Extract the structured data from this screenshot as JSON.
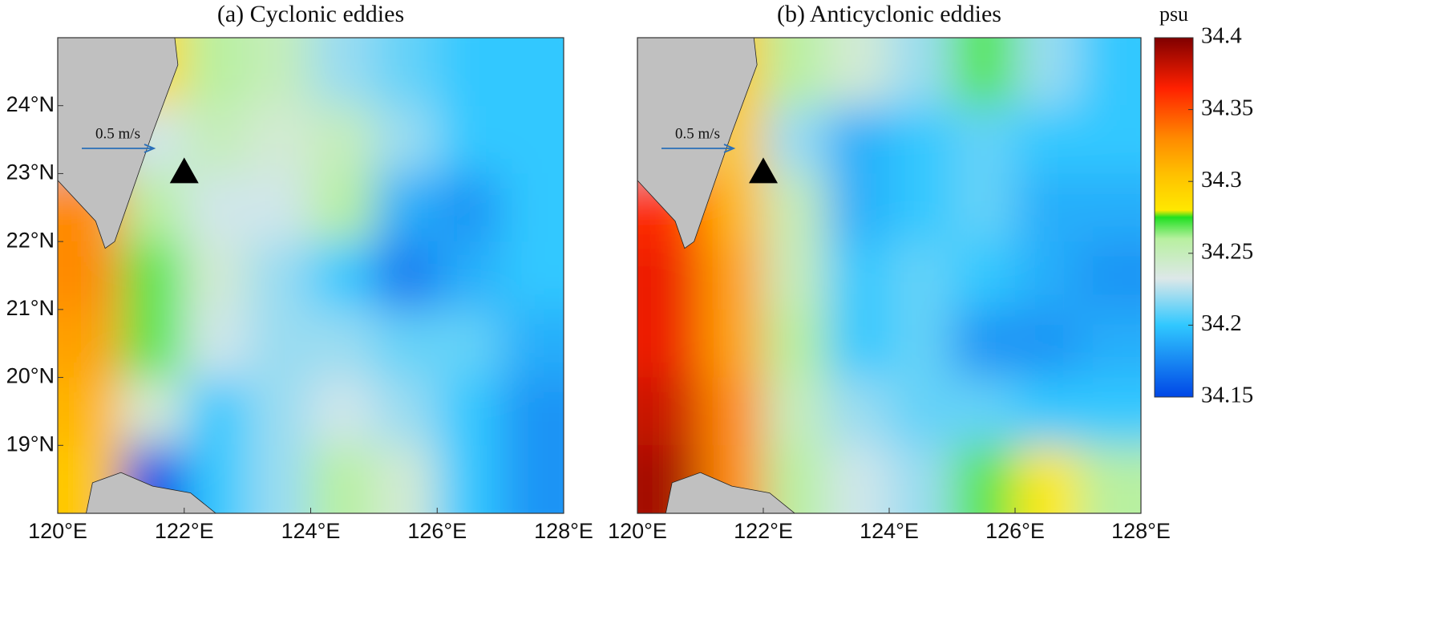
{
  "chart_data": [
    {
      "type": "heatmap",
      "title": "(a) Cyclonic eddies",
      "x": [
        120.5,
        121.5,
        122.5,
        123.5,
        124.5,
        125.5,
        126.5,
        127.5
      ],
      "y": [
        24.5,
        23.5,
        22.5,
        21.5,
        20.5,
        19.5,
        18.5
      ],
      "values": [
        [
          null,
          34.29,
          34.26,
          34.25,
          34.22,
          34.21,
          34.2,
          34.2
        ],
        [
          null,
          34.23,
          34.25,
          34.24,
          34.25,
          34.22,
          34.2,
          34.2
        ],
        [
          34.33,
          34.26,
          34.23,
          34.23,
          34.26,
          34.19,
          34.18,
          34.2
        ],
        [
          34.33,
          34.27,
          34.24,
          34.22,
          34.2,
          34.17,
          34.19,
          34.2
        ],
        [
          34.32,
          34.27,
          34.23,
          34.22,
          34.22,
          34.21,
          34.21,
          34.19
        ],
        [
          34.31,
          34.24,
          34.2,
          34.22,
          34.23,
          34.22,
          34.2,
          34.18
        ],
        [
          34.3,
          34.15,
          34.2,
          34.22,
          34.26,
          34.24,
          34.2,
          34.18
        ]
      ],
      "xlim": [
        120,
        128
      ],
      "ylim": [
        18,
        25
      ],
      "xticks": [
        {
          "value": 120,
          "label": "120°E"
        },
        {
          "value": 122,
          "label": "122°E"
        },
        {
          "value": 124,
          "label": "124°E"
        },
        {
          "value": 126,
          "label": "126°E"
        },
        {
          "value": 128,
          "label": "128°E"
        }
      ],
      "yticks": [
        {
          "value": 19,
          "label": "19°N"
        },
        {
          "value": 20,
          "label": "20°N"
        },
        {
          "value": 21,
          "label": "21°N"
        },
        {
          "value": 22,
          "label": "22°N"
        },
        {
          "value": 23,
          "label": "23°N"
        },
        {
          "value": 24,
          "label": "24°N"
        }
      ],
      "marker": {
        "lon": 122,
        "lat": 23
      },
      "scale_arrow": {
        "value": 0.5,
        "label": "0.5 m/s"
      }
    },
    {
      "type": "heatmap",
      "title": "(b) Anticyclonic eddies",
      "x": [
        120.5,
        121.5,
        122.5,
        123.5,
        124.5,
        125.5,
        126.5,
        127.5
      ],
      "y": [
        24.5,
        23.5,
        22.5,
        21.5,
        20.5,
        19.5,
        18.5
      ],
      "values": [
        [
          null,
          34.3,
          34.26,
          34.24,
          34.22,
          34.27,
          34.22,
          34.2
        ],
        [
          null,
          34.3,
          34.22,
          34.19,
          34.2,
          34.21,
          34.2,
          34.2
        ],
        [
          34.36,
          34.31,
          34.25,
          34.19,
          34.2,
          34.21,
          34.19,
          34.19
        ],
        [
          34.37,
          34.32,
          34.25,
          34.2,
          34.21,
          34.2,
          34.19,
          34.18
        ],
        [
          34.37,
          34.32,
          34.26,
          34.2,
          34.21,
          34.18,
          34.18,
          34.19
        ],
        [
          34.38,
          34.33,
          34.25,
          34.22,
          34.21,
          34.21,
          34.2,
          34.2
        ],
        [
          34.39,
          34.33,
          34.26,
          34.23,
          34.22,
          34.27,
          34.28,
          34.26
        ]
      ],
      "xlim": [
        120,
        128
      ],
      "ylim": [
        18,
        25
      ],
      "xticks": [
        {
          "value": 120,
          "label": "120°E"
        },
        {
          "value": 122,
          "label": "122°E"
        },
        {
          "value": 124,
          "label": "124°E"
        },
        {
          "value": 126,
          "label": "126°E"
        },
        {
          "value": 128,
          "label": "128°E"
        }
      ],
      "marker": {
        "lon": 122,
        "lat": 23
      },
      "scale_arrow": {
        "value": 0.5,
        "label": "0.5 m/s"
      },
      "colorbar": {
        "label": "psu",
        "lim": [
          34.15,
          34.4
        ],
        "ticks": [
          34.15,
          34.2,
          34.25,
          34.3,
          34.35,
          34.4
        ]
      }
    }
  ]
}
